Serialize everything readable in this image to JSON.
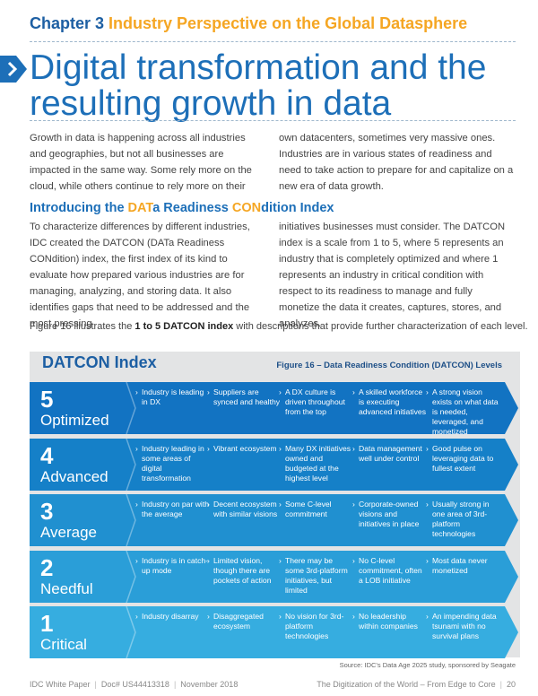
{
  "chapter": {
    "number": "Chapter 3",
    "title": "Industry Perspective on the Global Datasphere"
  },
  "heading": {
    "line1": "Digital transformation and the",
    "line2": "resulting growth in data"
  },
  "intro_col1": "Growth in data is happening across all industries and geographies, but not all businesses are impacted in the same way. Some rely more on the cloud, while others continue to rely more on their",
  "intro_col2": "own datacenters, sometimes very massive ones. Industries are in various states of readiness and need to take action to prepare for and capitalize on a new era of data growth.",
  "section": {
    "pre": "Introducing the ",
    "hl1": "DAT",
    "mid1": "a Readiness ",
    "hl2": "CON",
    "post": "dition Index"
  },
  "datcon_col1": "To characterize differences by different industries, IDC created the DATCON (DATa Readiness CONdition) index, the first index of its kind to evaluate how prepared various industries are for managing, analyzing, and storing data. It also identifies gaps that need to be addressed and the most pressing",
  "datcon_col2": "initiatives businesses must consider. The DATCON index is a scale from 1 to 5, where 5 represents an industry that is completely optimized and where 1 represents an industry in critical condition with respect to its readiness to manage and fully monetize the data it creates, captures, stores, and analyzes.",
  "figure_ref": {
    "pre": "Figure 16 illustrates the ",
    "bold": "1 to 5 DATCON index",
    "post": " with descriptions that provide further characterization of each level."
  },
  "index_title": "DATCON Index",
  "figure_caption": "Figure 16 – Data Readiness Condition (DATCON) Levels",
  "levels": [
    {
      "num": "5",
      "name": "Optimized",
      "color": "#1273c2",
      "cells": [
        "Industry is leading in DX",
        "Suppliers are synced and healthy",
        "A DX culture is driven throughout from the top",
        "A skilled workforce is executing advanced initiatives",
        "A strong vision exists on what data is needed, leveraged, and monetized"
      ]
    },
    {
      "num": "4",
      "name": "Advanced",
      "color": "#1580c8",
      "cells": [
        "Industry leading in some areas of digital transformation",
        "Vibrant ecosystem",
        "Many DX initiatives owned and budgeted at the highest level",
        "Data management well under control",
        "Good pulse on leveraging data to fullest extent"
      ]
    },
    {
      "num": "3",
      "name": "Average",
      "color": "#2090d0",
      "cells": [
        "Industry on par with the average",
        "Decent ecosystem with similar visions",
        "Some C-level commitment",
        "Corporate-owned visions and initiatives in place",
        "Usually strong in one area of 3rd-platform technologies"
      ]
    },
    {
      "num": "2",
      "name": "Needful",
      "color": "#2a9ed8",
      "cells": [
        "Industry is in catch-up mode",
        "Limited vision, though there are pockets of action",
        "There may be some 3rd-platform initiatives, but limited",
        "No C-level commitment, often a LOB initiative",
        "Most data never monetized"
      ]
    },
    {
      "num": "1",
      "name": "Critical",
      "color": "#36ade0",
      "cells": [
        "Industry disarray",
        "Disaggregated ecosystem",
        "No vision for 3rd-platform technologies",
        "No leadership within companies",
        "An impending data tsunami with no survival plans"
      ]
    }
  ],
  "source": "Source: IDC's Data Age 2025 study, sponsored by Seagate",
  "footer": {
    "left1": "IDC White Paper",
    "left2": "Doc# US44413318",
    "left3": "November 2018",
    "right1": "The Digitization of the World – From Edge to Core",
    "page": "20"
  }
}
